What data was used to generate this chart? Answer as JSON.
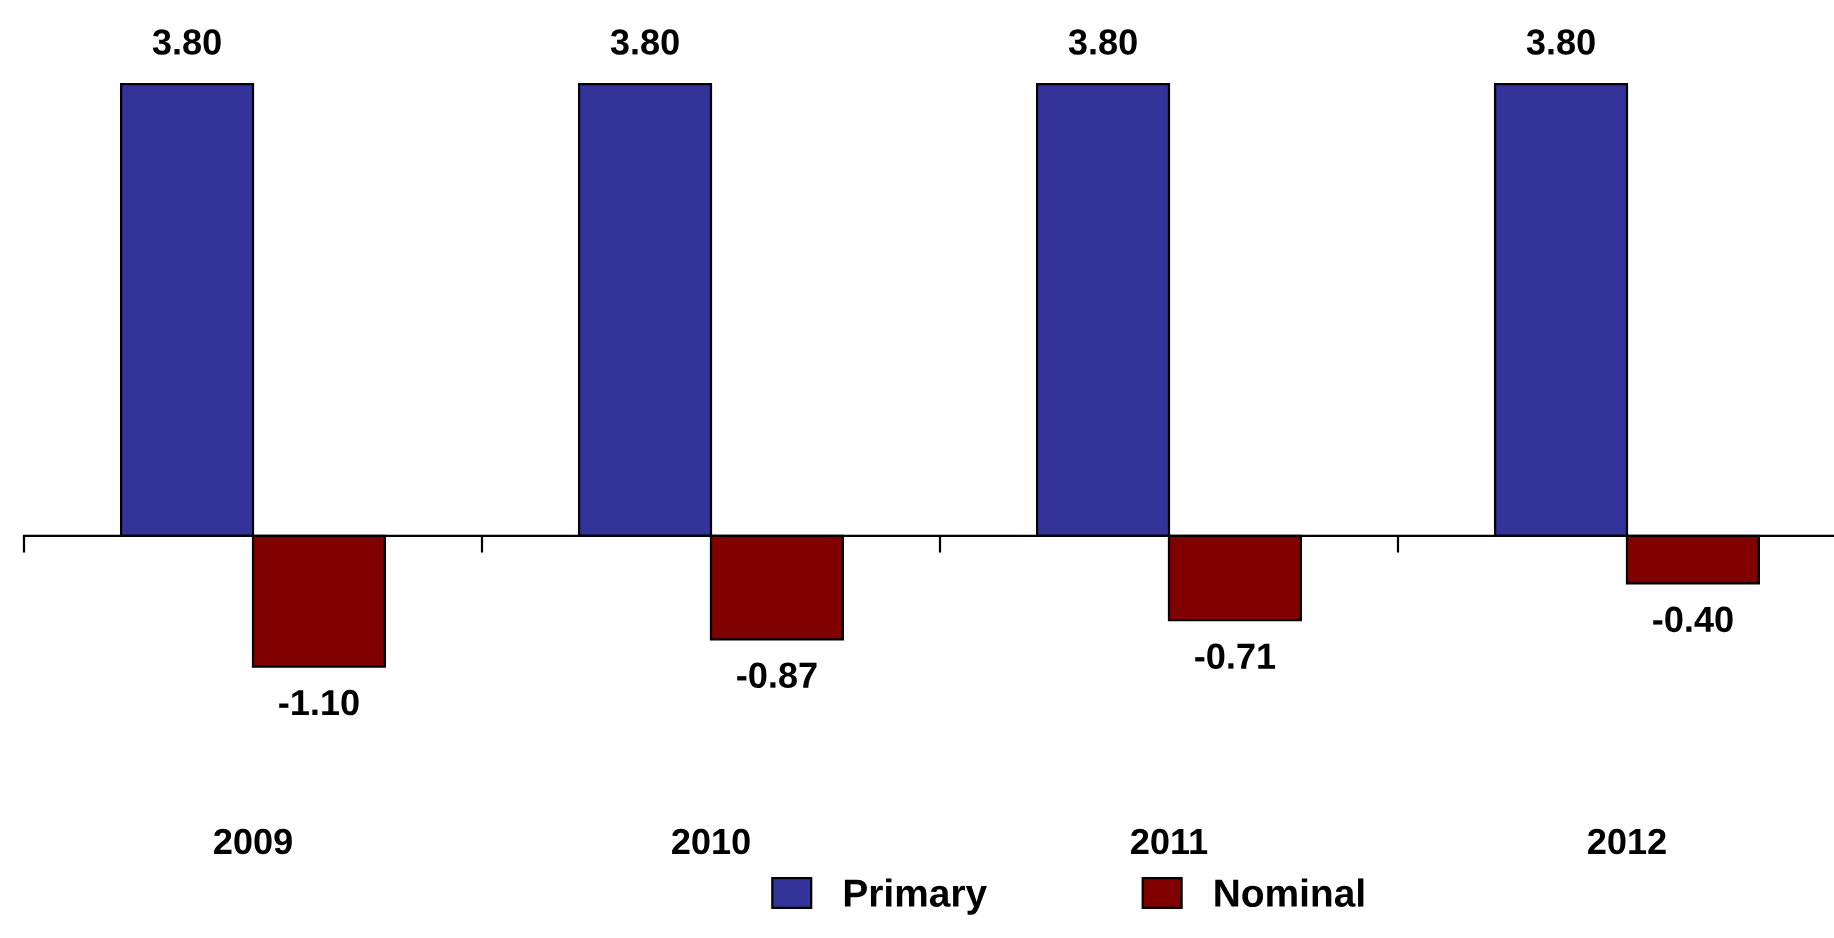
{
  "chart_data": {
    "type": "bar",
    "categories": [
      "2009",
      "2010",
      "2011",
      "2012"
    ],
    "series": [
      {
        "name": "Primary",
        "color": "#333399",
        "values": [
          3.8,
          3.8,
          3.8,
          3.8
        ],
        "value_labels": [
          "3.80",
          "3.80",
          "3.80",
          "3.80"
        ]
      },
      {
        "name": "Nominal",
        "color": "#800000",
        "values": [
          -1.1,
          -0.87,
          -0.71,
          -0.4
        ],
        "value_labels": [
          "-1.10",
          "-0.87",
          "-0.71",
          "-0.40"
        ]
      }
    ],
    "legend": "bottom",
    "grid": false
  }
}
